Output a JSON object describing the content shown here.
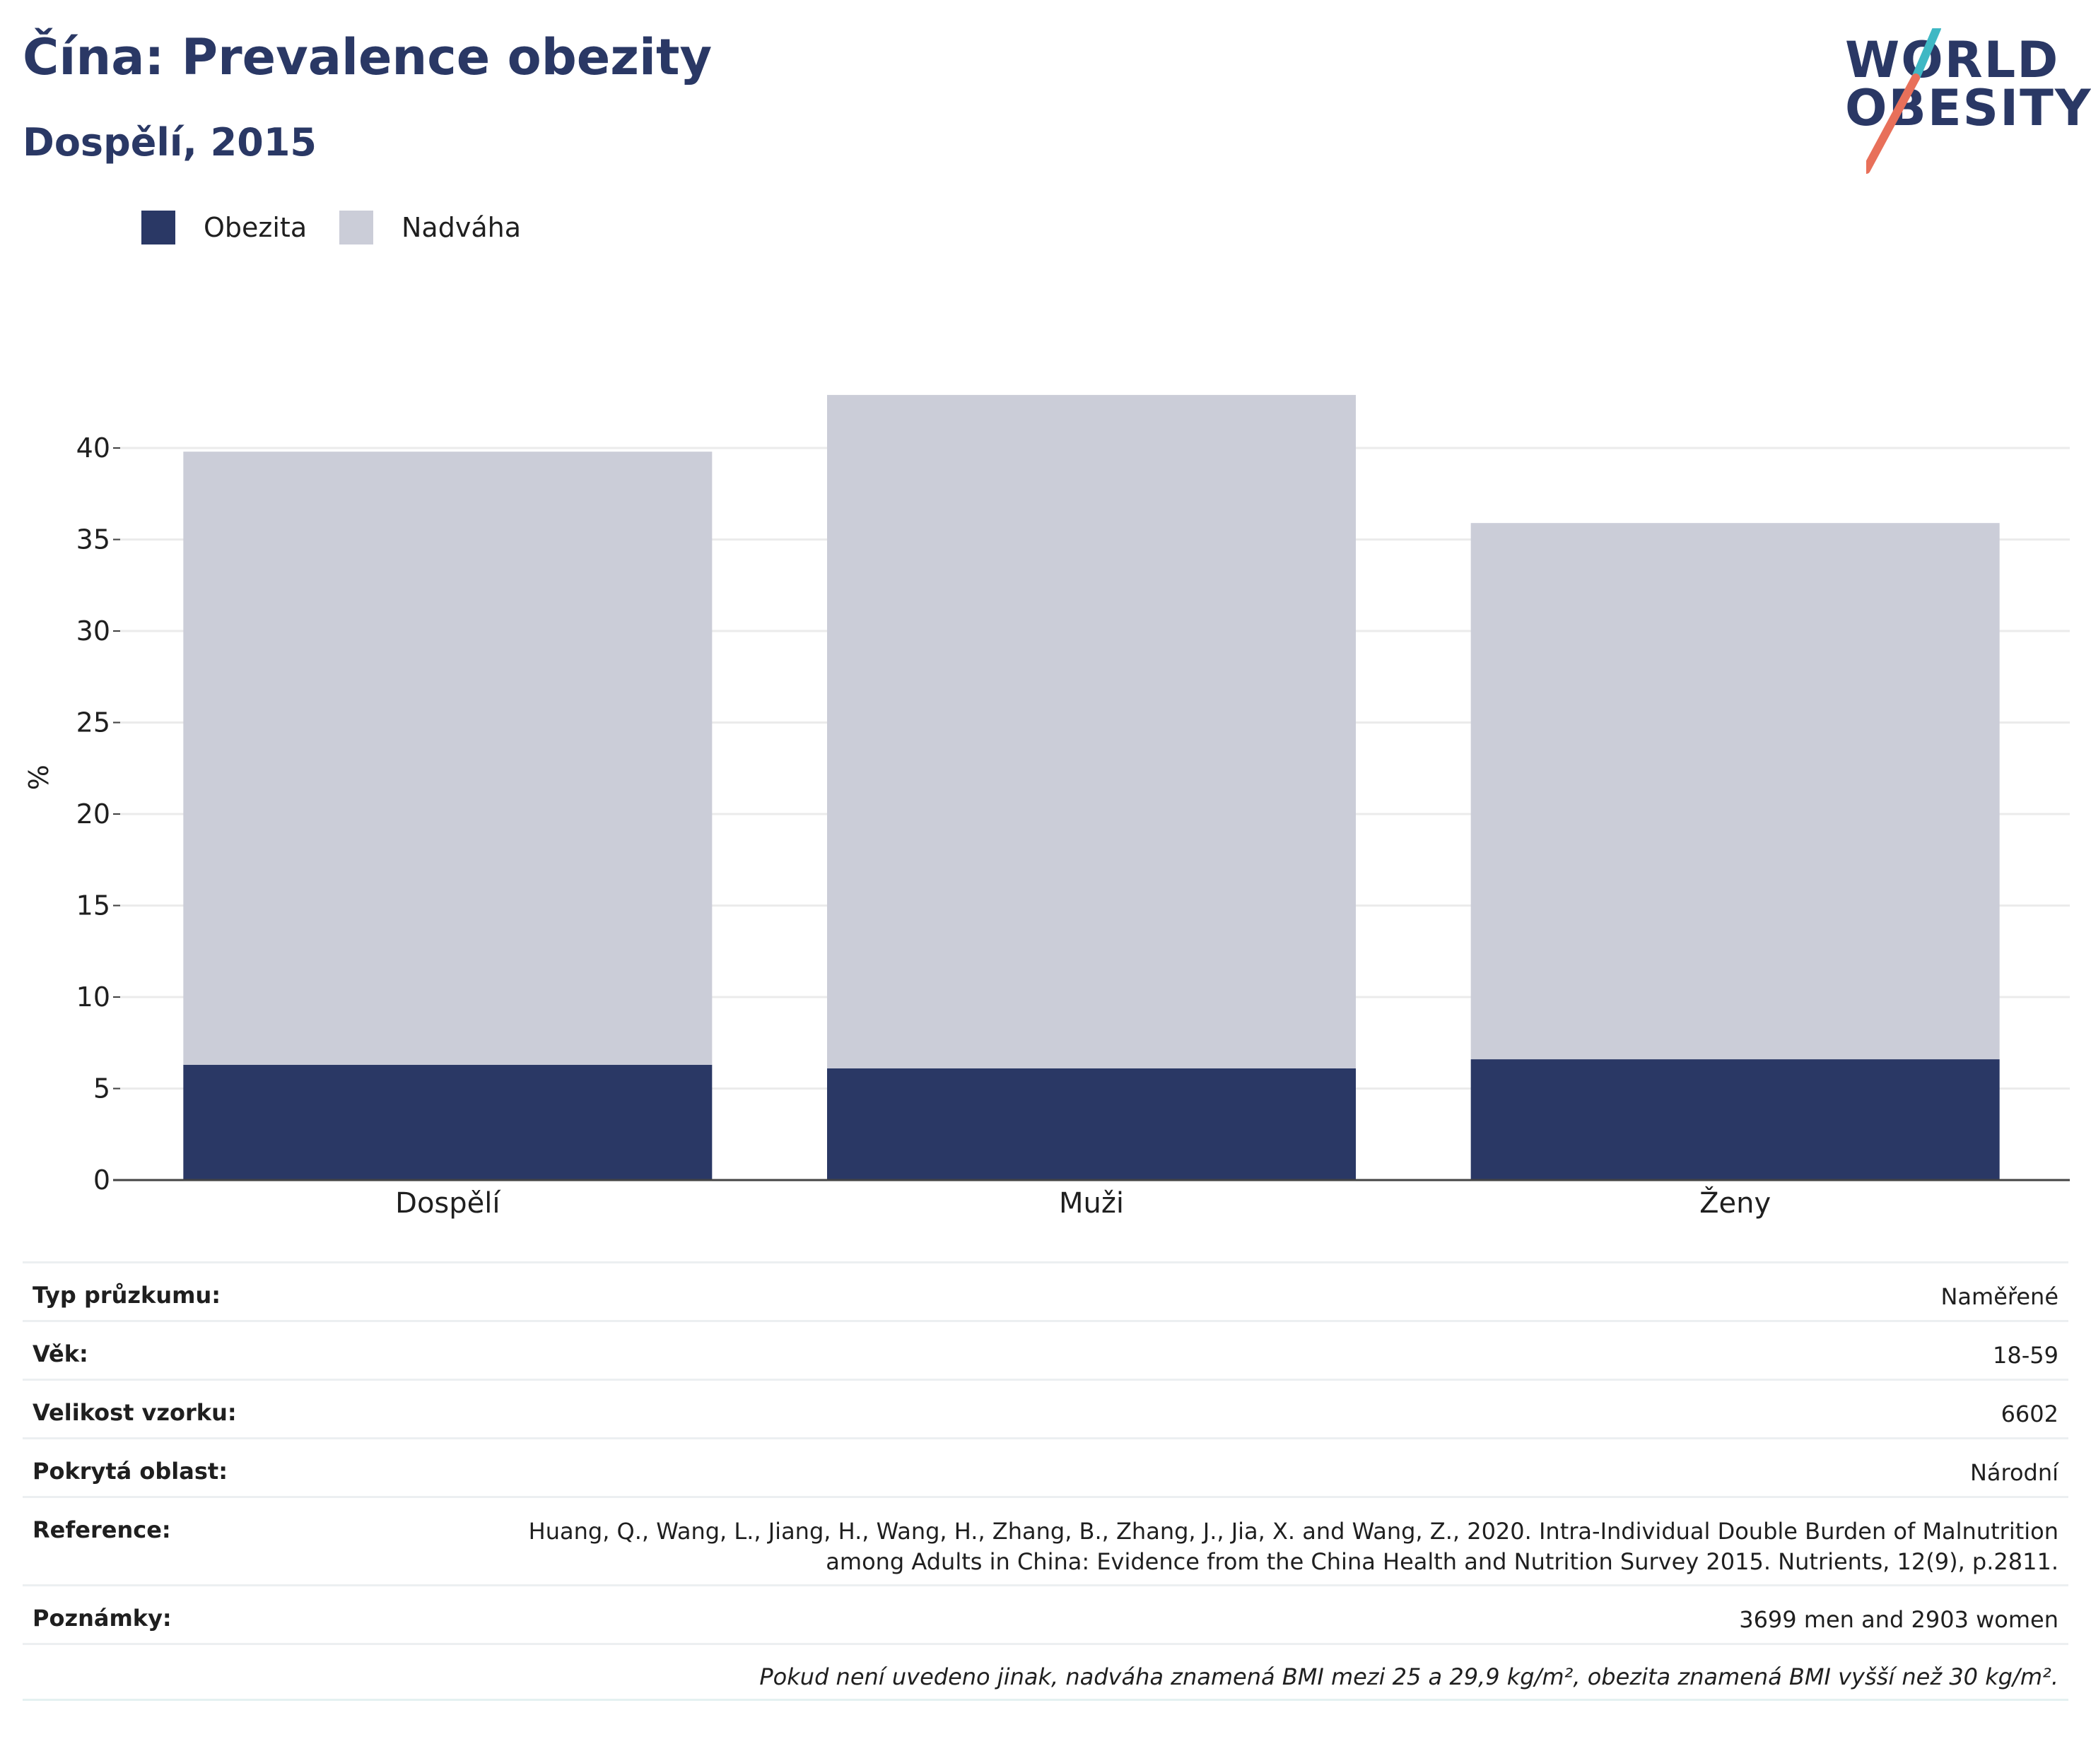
{
  "title": "Čína: Prevalence obezity",
  "subtitle": "Dospělí, 2015",
  "logo": {
    "line1": "WORLD",
    "line2": "OBESITY"
  },
  "colors": {
    "brand": "#2a3865",
    "obesity": "#2a3865",
    "overweight": "#cbcdd8",
    "logo_teal": "#3fb8c4",
    "logo_coral": "#e8705a"
  },
  "legend": [
    {
      "label": "Obezita",
      "color": "#2a3865"
    },
    {
      "label": "Nadváha",
      "color": "#cbcdd8"
    }
  ],
  "chart_data": {
    "type": "bar",
    "stacked": true,
    "categories": [
      "Dospělí",
      "Muži",
      "Ženy"
    ],
    "series": [
      {
        "name": "Obezita",
        "values": [
          6.3,
          6.1,
          6.6
        ]
      },
      {
        "name": "Nadváha",
        "values": [
          33.5,
          36.8,
          29.3
        ]
      }
    ],
    "ylabel": "%",
    "ylim": [
      0,
      45
    ],
    "yticks": [
      0,
      5,
      10,
      15,
      20,
      25,
      30,
      35,
      40
    ],
    "grid": true,
    "legend_position": "top-left"
  },
  "info": [
    {
      "key": "Typ průzkumu:",
      "value": "Naměřené"
    },
    {
      "key": "Věk:",
      "value": "18-59"
    },
    {
      "key": "Velikost vzorku:",
      "value": "6602"
    },
    {
      "key": "Pokrytá oblast:",
      "value": "Národní"
    },
    {
      "key": "Reference:",
      "value": "Huang, Q., Wang, L., Jiang, H., Wang, H., Zhang, B., Zhang, J., Jia, X. and Wang, Z., 2020. Intra-Individual Double Burden of Malnutrition among Adults in China: Evidence from the China Health and Nutrition Survey 2015. Nutrients, 12(9), p.2811."
    },
    {
      "key": "Poznámky:",
      "value": "3699 men and 2903 women"
    }
  ],
  "footnote": "Pokud není uvedeno jinak, nadváha znamená BMI mezi 25 a 29,9 kg/m², obezita znamená BMI vyšší než 30 kg/m²."
}
